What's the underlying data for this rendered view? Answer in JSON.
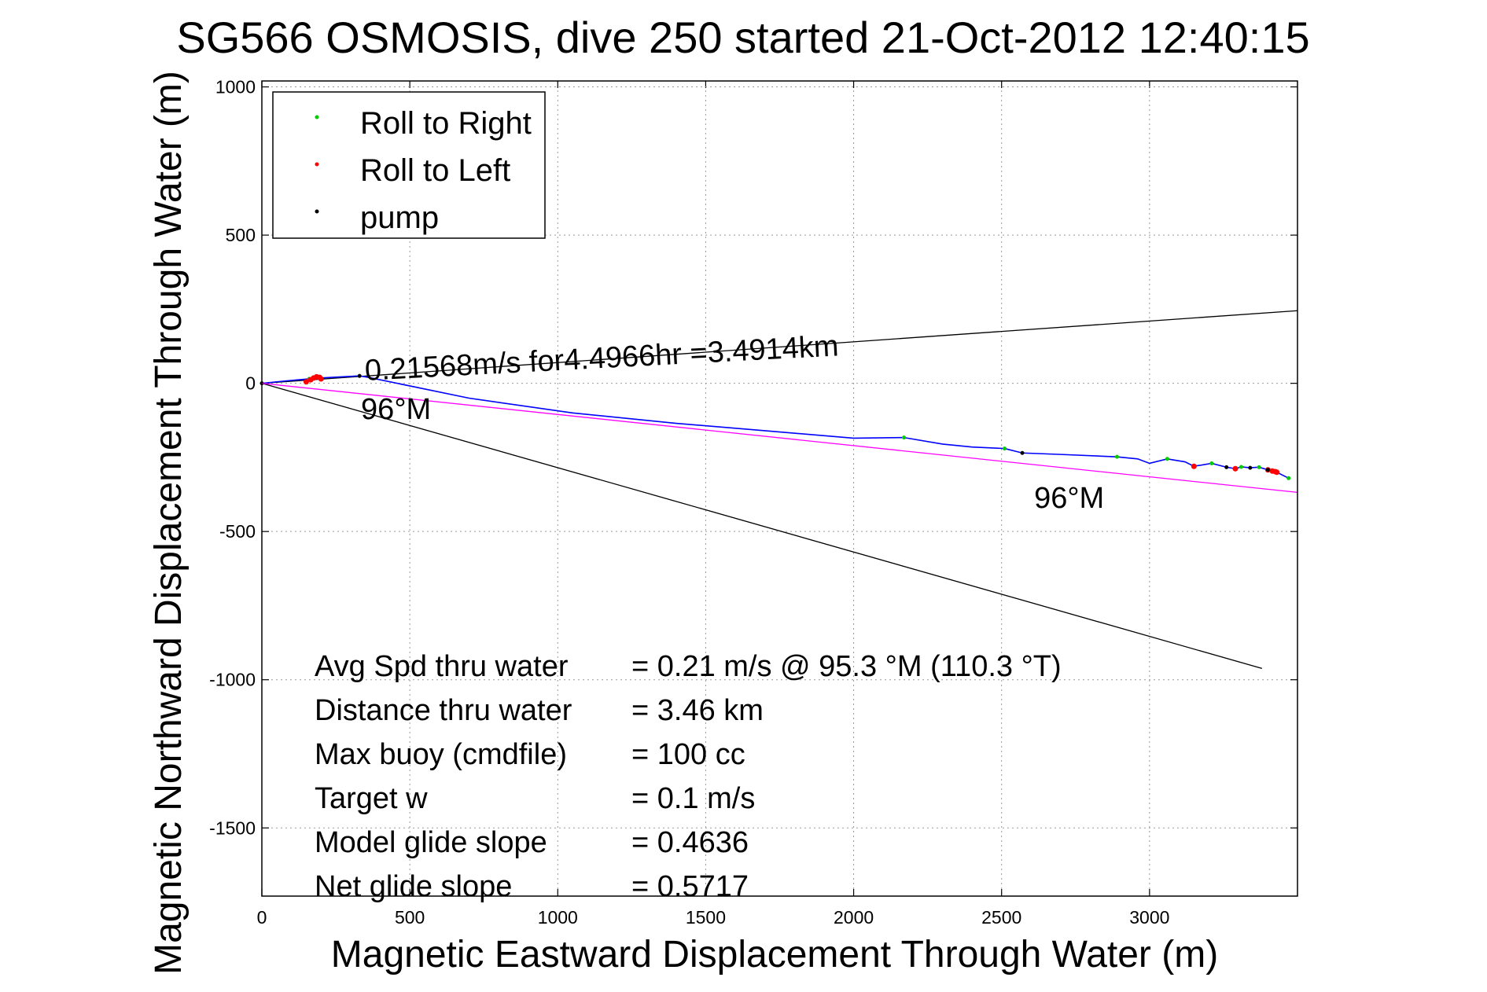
{
  "chart_data": {
    "type": "line",
    "title": "SG566 OSMOSIS, dive 250 started 21-Oct-2012 12:40:15",
    "xlabel": "Magnetic Eastward Displacement Through Water (m)",
    "ylabel": "Magnetic Northward Displacement Through Water (m)",
    "xlim": [
      0,
      3500
    ],
    "ylim": [
      -1730,
      1020
    ],
    "xticks": [
      0,
      500,
      1000,
      1500,
      2000,
      2500,
      3000
    ],
    "yticks": [
      1000,
      500,
      0,
      -500,
      -1000,
      -1500
    ],
    "grid": true,
    "legend_position": "top-left",
    "legend": [
      {
        "label": "Roll to Right",
        "color": "#00cc00"
      },
      {
        "label": "Roll to Left",
        "color": "#ff0000"
      },
      {
        "label": "pump",
        "color": "#000000"
      }
    ],
    "series": [
      {
        "name": "track",
        "color": "#0000ff",
        "x": [
          0,
          80,
          160,
          200,
          330,
          360,
          700,
          1050,
          1400,
          1700,
          2000,
          2170,
          2300,
          2400,
          2510,
          2570,
          2700,
          2890,
          2960,
          3000,
          3060,
          3120,
          3150,
          3210,
          3260,
          3290,
          3310,
          3340,
          3370,
          3400,
          3430,
          3470
        ],
        "y": [
          0,
          8,
          15,
          18,
          25,
          20,
          -50,
          -100,
          -135,
          -160,
          -185,
          -183,
          -205,
          -215,
          -220,
          -235,
          -240,
          -248,
          -255,
          -270,
          -255,
          -265,
          -280,
          -270,
          -283,
          -288,
          -282,
          -285,
          -283,
          -292,
          -300,
          -320
        ]
      },
      {
        "name": "Roll to Right",
        "color": "#00cc00",
        "x": [
          160,
          330,
          2170,
          2510,
          2890,
          3060,
          3210,
          3310,
          3370,
          3470
        ],
        "y": [
          15,
          25,
          -183,
          -220,
          -248,
          -255,
          -270,
          -282,
          -283,
          -320
        ]
      },
      {
        "name": "Roll to Left",
        "color": "#ff0000",
        "x": [
          150,
          165,
          175,
          185,
          195,
          200,
          3150,
          3290,
          3400,
          3415,
          3425,
          3430
        ],
        "y": [
          5,
          12,
          18,
          22,
          20,
          15,
          -280,
          -288,
          -292,
          -296,
          -298,
          -300
        ]
      },
      {
        "name": "pump",
        "color": "#000000",
        "x": [
          0,
          330,
          2570,
          3260,
          3340,
          3400
        ],
        "y": [
          0,
          25,
          -235,
          -283,
          -285,
          -292
        ]
      },
      {
        "name": "heading line 96°M",
        "color": "#ff00ff",
        "x": [
          0,
          3500
        ],
        "y": [
          0,
          -368
        ]
      },
      {
        "name": "upper bound",
        "color": "#000000",
        "x": [
          0,
          3500
        ],
        "y": [
          0,
          245
        ]
      },
      {
        "name": "lower bound",
        "color": "#000000",
        "x": [
          0,
          3380
        ],
        "y": [
          0,
          -962
        ]
      }
    ],
    "annotations": [
      {
        "text": "0.21568m/s for4.4966hr =3.4914km",
        "x": 350,
        "y": 10,
        "rotation_deg": -3
      },
      {
        "text": "96°M",
        "x": 335,
        "y": -120
      },
      {
        "text": "96°M",
        "x": 2610,
        "y": -420
      }
    ],
    "stats": [
      {
        "label": "Avg Spd thru water",
        "value": "=  0.21 m/s @  95.3 °M (110.3 °T)"
      },
      {
        "label": "Distance thru water",
        "value": "=  3.46 km"
      },
      {
        "label": "Max buoy (cmdfile)",
        "value": "= 100 cc"
      },
      {
        "label": "Target w",
        "value": "= 0.1 m/s"
      },
      {
        "label": "Model glide slope",
        "value": "= 0.4636"
      },
      {
        "label": "Net glide slope",
        "value": "= 0.5717"
      }
    ]
  }
}
